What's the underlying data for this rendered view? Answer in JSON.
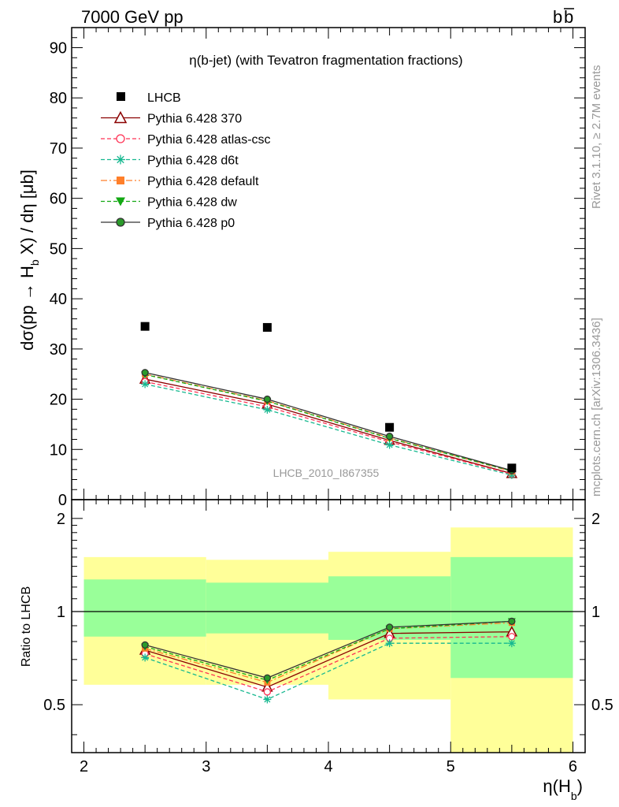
{
  "header": {
    "left": "7000 GeV pp",
    "right": "b",
    "right_bar": "b"
  },
  "side_text": {
    "top": "Rivet 3.1.10, ≥ 2.7M events",
    "bottom": "mcplots.cern.ch [arXiv:1306.3436]"
  },
  "watermark": "LHCB_2010_I867355",
  "main_title": "η(b-jet) (with Tevatron fragmentation fractions)",
  "ratio_ylabel": "Ratio to LHCB",
  "chart_data": [
    {
      "type": "scatter",
      "title": "η(b-jet) (with Tevatron fragmentation fractions)",
      "xlabel": "η(H_b)",
      "ylabel": "dσ(pp → H_b X) / dη [μb]",
      "xlim": [
        1.9,
        6.1
      ],
      "ylim": [
        0,
        94
      ],
      "x_ticks": [
        2,
        3,
        4,
        5,
        6
      ],
      "y_ticks": [
        0,
        10,
        20,
        30,
        40,
        50,
        60,
        70,
        80,
        90
      ],
      "legend_position": "top-left",
      "data": {
        "name": "LHCB",
        "x": [
          2.5,
          3.5,
          4.5,
          5.5
        ],
        "y": [
          34.5,
          34.3,
          14.4,
          6.3
        ]
      },
      "series": [
        {
          "name": "Pythia 6.428 370",
          "color": "#8b0000",
          "line": "solid",
          "marker": "open-triangle",
          "x": [
            2.5,
            3.5,
            4.5,
            5.5
          ],
          "y": [
            24.0,
            19.0,
            11.8,
            5.2
          ]
        },
        {
          "name": "Pythia 6.428 atlas-csc",
          "color": "#ff3355",
          "line": "dashed",
          "marker": "open-circle",
          "x": [
            2.5,
            3.5,
            4.5,
            5.5
          ],
          "y": [
            23.5,
            18.5,
            11.5,
            5.1
          ]
        },
        {
          "name": "Pythia 6.428 d6t",
          "color": "#17b890",
          "line": "dashed",
          "marker": "star",
          "x": [
            2.5,
            3.5,
            4.5,
            5.5
          ],
          "y": [
            23.0,
            17.9,
            10.9,
            4.9
          ]
        },
        {
          "name": "Pythia 6.428 default",
          "color": "#ff7f2a",
          "line": "dashdot",
          "marker": "filled-square",
          "x": [
            2.5,
            3.5,
            4.5,
            5.5
          ],
          "y": [
            25.0,
            19.7,
            12.3,
            5.6
          ]
        },
        {
          "name": "Pythia 6.428 dw",
          "color": "#13a813",
          "line": "dashed",
          "marker": "filled-triangle-down",
          "x": [
            2.5,
            3.5,
            4.5,
            5.5
          ],
          "y": [
            24.9,
            19.6,
            12.2,
            5.7
          ]
        },
        {
          "name": "Pythia 6.428 p0",
          "color": "#333333",
          "line": "solid",
          "marker": "open-circle",
          "x": [
            2.5,
            3.5,
            4.5,
            5.5
          ],
          "y": [
            25.3,
            20.0,
            12.6,
            5.8
          ]
        }
      ]
    },
    {
      "type": "line",
      "ylabel": "Ratio to LHCB",
      "xlabel": "η(H_b)",
      "xlim": [
        1.9,
        6.1
      ],
      "ylim": [
        0.35,
        2.3
      ],
      "y_ticks": [
        0.5,
        1,
        2
      ],
      "reference_line": 1,
      "bands": [
        {
          "x_from": 2,
          "x_to": 3,
          "yellow": [
            0.58,
            1.5
          ],
          "green": [
            0.83,
            1.27
          ]
        },
        {
          "x_from": 3,
          "x_to": 4,
          "yellow": [
            0.58,
            1.47
          ],
          "green": [
            0.85,
            1.24
          ]
        },
        {
          "x_from": 4,
          "x_to": 5,
          "yellow": [
            0.52,
            1.56
          ],
          "green": [
            0.81,
            1.3
          ]
        },
        {
          "x_from": 5,
          "x_to": 6,
          "yellow": [
            0.35,
            1.87
          ],
          "green": [
            0.61,
            1.5
          ]
        }
      ],
      "series": [
        {
          "name": "Pythia 6.428 370",
          "x": [
            2.5,
            3.5,
            4.5,
            5.5
          ],
          "y": [
            0.75,
            0.57,
            0.85,
            0.86
          ]
        },
        {
          "name": "Pythia 6.428 atlas-csc",
          "x": [
            2.5,
            3.5,
            4.5,
            5.5
          ],
          "y": [
            0.73,
            0.55,
            0.82,
            0.83
          ]
        },
        {
          "name": "Pythia 6.428 d6t",
          "x": [
            2.5,
            3.5,
            4.5,
            5.5
          ],
          "y": [
            0.71,
            0.52,
            0.79,
            0.79
          ]
        },
        {
          "name": "Pythia 6.428 default",
          "x": [
            2.5,
            3.5,
            4.5,
            5.5
          ],
          "y": [
            0.76,
            0.59,
            0.88,
            0.92
          ]
        },
        {
          "name": "Pythia 6.428 dw",
          "x": [
            2.5,
            3.5,
            4.5,
            5.5
          ],
          "y": [
            0.77,
            0.6,
            0.88,
            0.93
          ]
        },
        {
          "name": "Pythia 6.428 p0",
          "x": [
            2.5,
            3.5,
            4.5,
            5.5
          ],
          "y": [
            0.78,
            0.61,
            0.89,
            0.93
          ]
        }
      ]
    }
  ]
}
